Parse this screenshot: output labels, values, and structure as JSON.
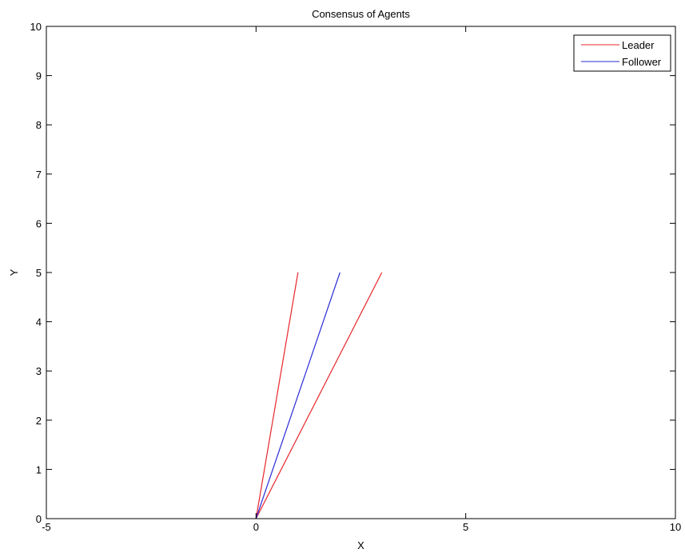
{
  "chart_data": {
    "type": "line",
    "title": "Consensus of Agents",
    "xlabel": "X",
    "ylabel": "Y",
    "xlim": [
      -5,
      10
    ],
    "ylim": [
      0,
      10
    ],
    "xticks": [
      -5,
      0,
      5,
      10
    ],
    "yticks": [
      0,
      1,
      2,
      3,
      4,
      5,
      6,
      7,
      8,
      9,
      10
    ],
    "grid": false,
    "legend": {
      "placement": "top-right",
      "entries": [
        {
          "label": "Leader",
          "color": "#e8262b"
        },
        {
          "label": "Follower",
          "color": "#2a2ad6"
        }
      ]
    },
    "series": [
      {
        "name": "Leader",
        "color": "#e8262b",
        "x": [
          0,
          1
        ],
        "y": [
          0,
          5
        ]
      },
      {
        "name": "Leader",
        "color": "#e8262b",
        "x": [
          0,
          3
        ],
        "y": [
          0,
          5
        ]
      },
      {
        "name": "Follower",
        "color": "#2a2ad6",
        "x": [
          0,
          2
        ],
        "y": [
          0,
          5
        ]
      }
    ]
  }
}
